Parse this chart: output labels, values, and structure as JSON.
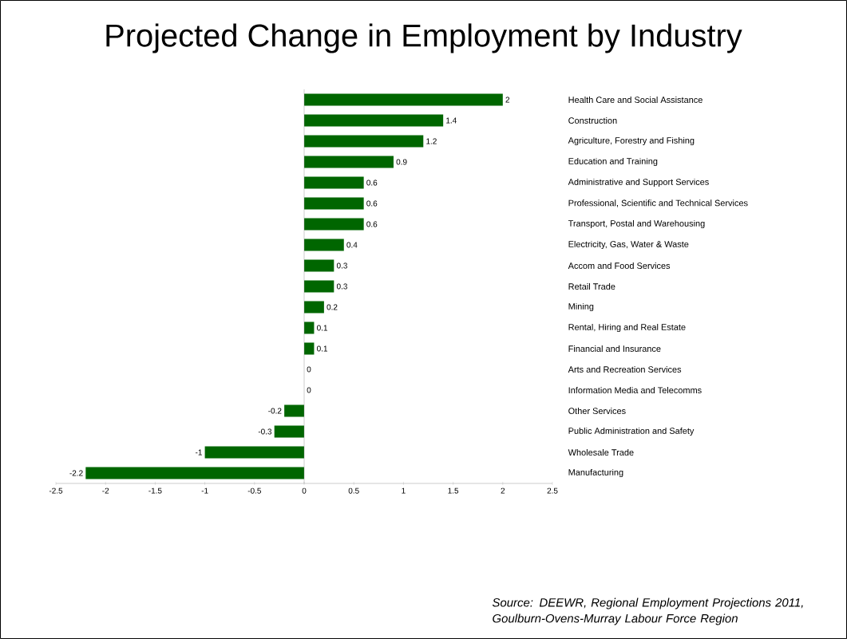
{
  "chart_data": {
    "type": "bar",
    "orientation": "horizontal",
    "title": "Projected Change in Employment by Industry",
    "categories": [
      "Health Care and Social Assistance",
      "Construction",
      "Agriculture, Forestry and Fishing",
      "Education and Training",
      "Administrative and Support Services",
      "Professional, Scientific and Technical Services",
      "Transport, Postal and Warehousing",
      "Electricity, Gas, Water & Waste",
      "Accom and Food Services",
      "Retail Trade",
      "Mining",
      "Rental, Hiring and Real Estate",
      "Financial and Insurance",
      "Arts and Recreation Services",
      "Information Media and Telecomms",
      "Other Services",
      "Public Administration and Safety",
      "Wholesale Trade",
      "Manufacturing"
    ],
    "values": [
      2,
      1.4,
      1.2,
      0.9,
      0.6,
      0.6,
      0.6,
      0.4,
      0.3,
      0.3,
      0.2,
      0.1,
      0.1,
      0,
      0,
      -0.2,
      -0.3,
      -1,
      -2.2
    ],
    "color": "#006600",
    "xlim": [
      -2.5,
      2.5
    ],
    "xticks": [
      -2.5,
      -2,
      -1.5,
      -1,
      -0.5,
      0,
      0.5,
      1,
      1.5,
      2,
      2.5
    ],
    "value_labels": [
      "2",
      "1.4",
      "1.2",
      "0.9",
      "0.6",
      "0.6",
      "0.6",
      "0.4",
      "0.3",
      "0.3",
      "0.2",
      "0.1",
      "0.1",
      "0",
      "0",
      "-0.2",
      "-0.3",
      "-1",
      "-2.2"
    ],
    "annotations": [
      "Source:  DEEWR, Regional Employment Projections 2011, Goulburn-Ovens-Murray Labour Force Region"
    ]
  }
}
